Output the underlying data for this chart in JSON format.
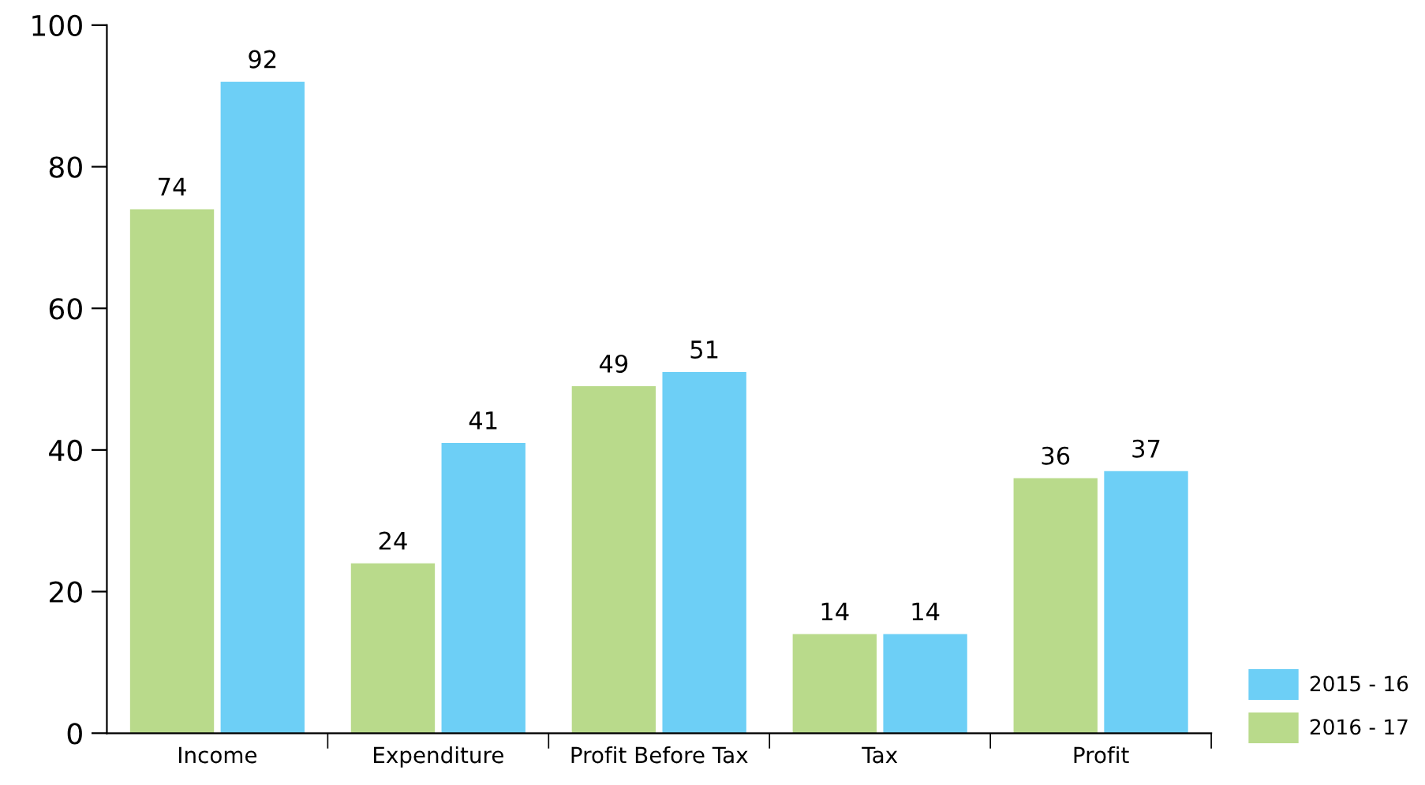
{
  "chart_data": {
    "type": "bar",
    "categories": [
      "Income",
      "Expenditure",
      "Profit Before Tax",
      "Tax",
      "Profit"
    ],
    "series": [
      {
        "name": "2016 - 17",
        "color": "#b9da8b",
        "values": [
          74,
          24,
          49,
          14,
          36
        ]
      },
      {
        "name": "2015 - 16",
        "color": "#6dcff6",
        "values": [
          92,
          41,
          51,
          14,
          37
        ]
      }
    ],
    "ylim": [
      0,
      100
    ],
    "yticks": [
      0,
      20,
      40,
      60,
      80,
      100
    ],
    "data_labels": true,
    "grid": false,
    "legend": "bottom right"
  }
}
